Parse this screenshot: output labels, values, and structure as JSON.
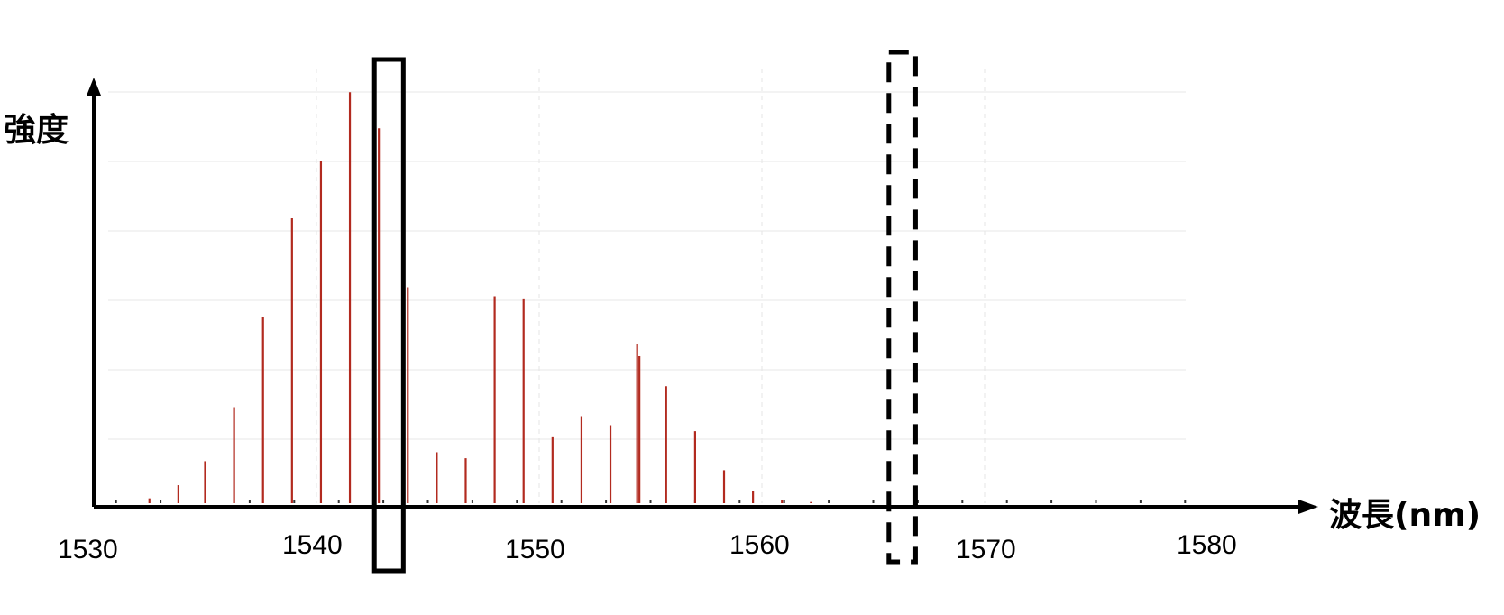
{
  "chart_data": {
    "type": "bar",
    "title": "",
    "xlabel": "波長(nm)",
    "ylabel": "強度",
    "xlim": [
      1530,
      1582
    ],
    "xticks": [
      "1530",
      "1540",
      "1550",
      "1560",
      "1570",
      "1580"
    ],
    "grid": true,
    "legend": "none",
    "peak_color": "#b22a1f",
    "series": [
      {
        "x": [
          1532.5,
          1533.8,
          1535.0,
          1536.3,
          1537.6,
          1538.9,
          1540.2,
          1541.5,
          1542.8,
          1544.1,
          1545.4,
          1546.7,
          1548.0,
          1549.3,
          1550.6,
          1551.9,
          1553.2,
          1554.4,
          1554.5,
          1555.7,
          1557.0,
          1558.3,
          1559.6,
          1560.9,
          1562.2
        ],
        "values": [
          0.8,
          3.0,
          7.0,
          16.0,
          31.0,
          47.5,
          57.0,
          68.5,
          62.5,
          36.0,
          8.5,
          7.5,
          34.5,
          34.0,
          11.0,
          14.5,
          13.0,
          26.5,
          24.5,
          19.5,
          12.0,
          5.5,
          2.0,
          0.5,
          0.2
        ]
      }
    ],
    "ylim": [
      0,
      100
    ],
    "annotations": [
      {
        "kind": "solid-box",
        "x_from": 1542.6,
        "x_to": 1543.9
      },
      {
        "kind": "dashed-box",
        "x_from": 1565.7,
        "x_to": 1566.9
      }
    ]
  }
}
